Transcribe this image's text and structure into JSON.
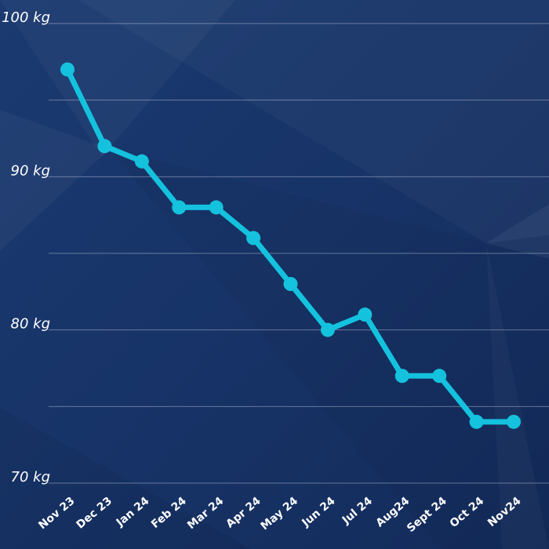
{
  "colors": {
    "background": "#173367",
    "line": "#14c2de",
    "text": "#ffffff"
  },
  "chart_data": {
    "type": "line",
    "title": "",
    "xlabel": "",
    "ylabel": "",
    "categories": [
      "Nov 23",
      "Dec 23",
      "Jan 24",
      "Feb 24",
      "Mar 24",
      "Apr 24",
      "May 24",
      "Jun 24",
      "Jul 24",
      "Aug24",
      "Sept 24",
      "Oct 24",
      "Nov24"
    ],
    "series": [
      {
        "values": [
          97,
          92,
          91,
          88,
          88,
          86,
          83,
          80,
          81,
          77,
          77,
          74,
          74
        ]
      }
    ],
    "ylim": [
      70,
      100
    ],
    "yticks": [
      70,
      75,
      80,
      85,
      90,
      95,
      100
    ],
    "ytick_labels": [
      "70 kg",
      "",
      "80 kg",
      "",
      "90 kg",
      "",
      "100 kg"
    ],
    "grid": true,
    "legend": "none"
  }
}
